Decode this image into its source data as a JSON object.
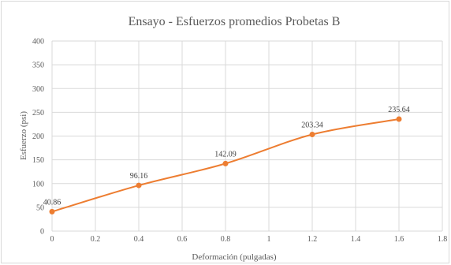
{
  "chart_data": {
    "type": "line",
    "title": "Ensayo  - Esfuerzos promedios  Probetas B",
    "xlabel": "Deformación (pulgadas)",
    "ylabel": "Esfuerzo (psi)",
    "xlim": [
      0,
      1.8
    ],
    "ylim": [
      0,
      400
    ],
    "x_ticks": [
      "0",
      "0.2",
      "0.4",
      "0.6",
      "0.8",
      "1",
      "1.2",
      "1.4",
      "1.6",
      "1.8"
    ],
    "y_ticks": [
      "0",
      "50",
      "100",
      "150",
      "200",
      "250",
      "300",
      "350",
      "400"
    ],
    "grid": true,
    "series": [
      {
        "color": "#ED7D31",
        "x": [
          0,
          0.4,
          0.8,
          1.2,
          1.6
        ],
        "y": [
          40.86,
          96.16,
          142.09,
          203.34,
          235.64
        ],
        "labels": [
          "40.86",
          "96.16",
          "142.09",
          "203.34",
          "235.64"
        ]
      }
    ]
  }
}
